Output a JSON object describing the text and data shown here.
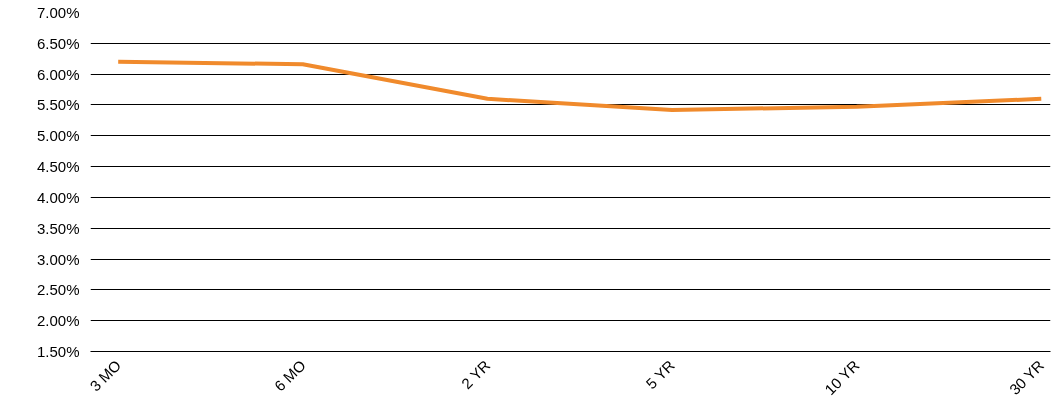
{
  "chart_data": {
    "type": "line",
    "categories": [
      "3 MO",
      "6 MO",
      "2 YR",
      "5 YR",
      "10 YR",
      "30 YR"
    ],
    "series": [
      {
        "color": "#f08a2c",
        "values": [
          6.2,
          6.16,
          5.6,
          5.42,
          5.47,
          5.6
        ]
      }
    ],
    "ylim": [
      1.5,
      7.0
    ],
    "yticks": [
      {
        "value": 1.5,
        "label": "1.50%"
      },
      {
        "value": 2.0,
        "label": "2.00%"
      },
      {
        "value": 2.5,
        "label": "2.50%"
      },
      {
        "value": 3.0,
        "label": "3.00%"
      },
      {
        "value": 3.5,
        "label": "3.50%"
      },
      {
        "value": 4.0,
        "label": "4.00%"
      },
      {
        "value": 4.5,
        "label": "4.50%"
      },
      {
        "value": 5.0,
        "label": "5.00%"
      },
      {
        "value": 5.5,
        "label": "5.50%"
      },
      {
        "value": 6.0,
        "label": "6.00%"
      },
      {
        "value": 6.5,
        "label": "6.50%"
      },
      {
        "value": 7.0,
        "label": "7.00%"
      }
    ],
    "grid": "y",
    "marker": "none",
    "line_style": "solid"
  }
}
